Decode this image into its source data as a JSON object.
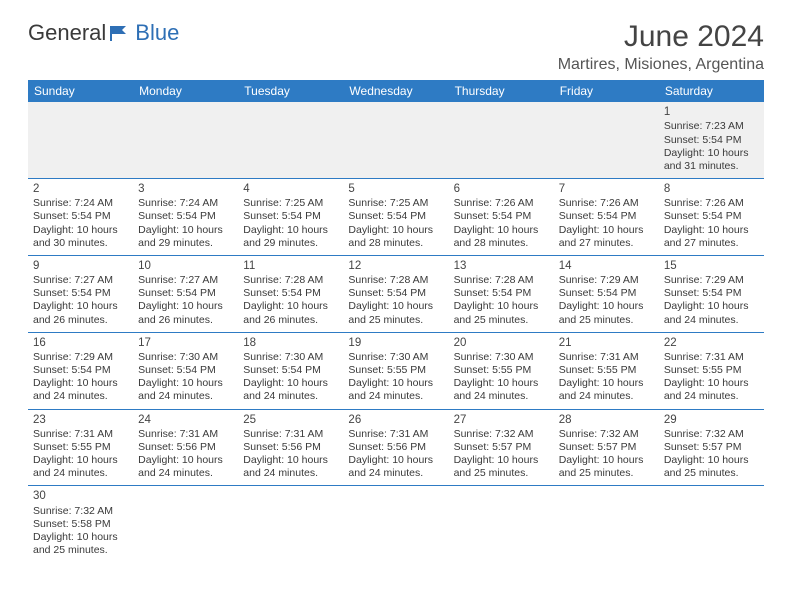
{
  "brand": {
    "part1": "General",
    "part2": "Blue"
  },
  "title": "June 2024",
  "location": "Martires, Misiones, Argentina",
  "colors": {
    "header_bg": "#2e7bc4",
    "header_fg": "#ffffff",
    "row_border": "#2e7bc4",
    "first_row_bg": "#f0f0f0",
    "text": "#3a3a3a",
    "brand_blue": "#2e6fb5"
  },
  "typography": {
    "title_fontsize": 30,
    "location_fontsize": 16,
    "header_fontsize": 12,
    "cell_fontsize": 10.5
  },
  "days": [
    "Sunday",
    "Monday",
    "Tuesday",
    "Wednesday",
    "Thursday",
    "Friday",
    "Saturday"
  ],
  "weeks": [
    [
      null,
      null,
      null,
      null,
      null,
      null,
      {
        "n": "1",
        "sr": "Sunrise: 7:23 AM",
        "ss": "Sunset: 5:54 PM",
        "dl": "Daylight: 10 hours and 31 minutes."
      }
    ],
    [
      {
        "n": "2",
        "sr": "Sunrise: 7:24 AM",
        "ss": "Sunset: 5:54 PM",
        "dl": "Daylight: 10 hours and 30 minutes."
      },
      {
        "n": "3",
        "sr": "Sunrise: 7:24 AM",
        "ss": "Sunset: 5:54 PM",
        "dl": "Daylight: 10 hours and 29 minutes."
      },
      {
        "n": "4",
        "sr": "Sunrise: 7:25 AM",
        "ss": "Sunset: 5:54 PM",
        "dl": "Daylight: 10 hours and 29 minutes."
      },
      {
        "n": "5",
        "sr": "Sunrise: 7:25 AM",
        "ss": "Sunset: 5:54 PM",
        "dl": "Daylight: 10 hours and 28 minutes."
      },
      {
        "n": "6",
        "sr": "Sunrise: 7:26 AM",
        "ss": "Sunset: 5:54 PM",
        "dl": "Daylight: 10 hours and 28 minutes."
      },
      {
        "n": "7",
        "sr": "Sunrise: 7:26 AM",
        "ss": "Sunset: 5:54 PM",
        "dl": "Daylight: 10 hours and 27 minutes."
      },
      {
        "n": "8",
        "sr": "Sunrise: 7:26 AM",
        "ss": "Sunset: 5:54 PM",
        "dl": "Daylight: 10 hours and 27 minutes."
      }
    ],
    [
      {
        "n": "9",
        "sr": "Sunrise: 7:27 AM",
        "ss": "Sunset: 5:54 PM",
        "dl": "Daylight: 10 hours and 26 minutes."
      },
      {
        "n": "10",
        "sr": "Sunrise: 7:27 AM",
        "ss": "Sunset: 5:54 PM",
        "dl": "Daylight: 10 hours and 26 minutes."
      },
      {
        "n": "11",
        "sr": "Sunrise: 7:28 AM",
        "ss": "Sunset: 5:54 PM",
        "dl": "Daylight: 10 hours and 26 minutes."
      },
      {
        "n": "12",
        "sr": "Sunrise: 7:28 AM",
        "ss": "Sunset: 5:54 PM",
        "dl": "Daylight: 10 hours and 25 minutes."
      },
      {
        "n": "13",
        "sr": "Sunrise: 7:28 AM",
        "ss": "Sunset: 5:54 PM",
        "dl": "Daylight: 10 hours and 25 minutes."
      },
      {
        "n": "14",
        "sr": "Sunrise: 7:29 AM",
        "ss": "Sunset: 5:54 PM",
        "dl": "Daylight: 10 hours and 25 minutes."
      },
      {
        "n": "15",
        "sr": "Sunrise: 7:29 AM",
        "ss": "Sunset: 5:54 PM",
        "dl": "Daylight: 10 hours and 24 minutes."
      }
    ],
    [
      {
        "n": "16",
        "sr": "Sunrise: 7:29 AM",
        "ss": "Sunset: 5:54 PM",
        "dl": "Daylight: 10 hours and 24 minutes."
      },
      {
        "n": "17",
        "sr": "Sunrise: 7:30 AM",
        "ss": "Sunset: 5:54 PM",
        "dl": "Daylight: 10 hours and 24 minutes."
      },
      {
        "n": "18",
        "sr": "Sunrise: 7:30 AM",
        "ss": "Sunset: 5:54 PM",
        "dl": "Daylight: 10 hours and 24 minutes."
      },
      {
        "n": "19",
        "sr": "Sunrise: 7:30 AM",
        "ss": "Sunset: 5:55 PM",
        "dl": "Daylight: 10 hours and 24 minutes."
      },
      {
        "n": "20",
        "sr": "Sunrise: 7:30 AM",
        "ss": "Sunset: 5:55 PM",
        "dl": "Daylight: 10 hours and 24 minutes."
      },
      {
        "n": "21",
        "sr": "Sunrise: 7:31 AM",
        "ss": "Sunset: 5:55 PM",
        "dl": "Daylight: 10 hours and 24 minutes."
      },
      {
        "n": "22",
        "sr": "Sunrise: 7:31 AM",
        "ss": "Sunset: 5:55 PM",
        "dl": "Daylight: 10 hours and 24 minutes."
      }
    ],
    [
      {
        "n": "23",
        "sr": "Sunrise: 7:31 AM",
        "ss": "Sunset: 5:55 PM",
        "dl": "Daylight: 10 hours and 24 minutes."
      },
      {
        "n": "24",
        "sr": "Sunrise: 7:31 AM",
        "ss": "Sunset: 5:56 PM",
        "dl": "Daylight: 10 hours and 24 minutes."
      },
      {
        "n": "25",
        "sr": "Sunrise: 7:31 AM",
        "ss": "Sunset: 5:56 PM",
        "dl": "Daylight: 10 hours and 24 minutes."
      },
      {
        "n": "26",
        "sr": "Sunrise: 7:31 AM",
        "ss": "Sunset: 5:56 PM",
        "dl": "Daylight: 10 hours and 24 minutes."
      },
      {
        "n": "27",
        "sr": "Sunrise: 7:32 AM",
        "ss": "Sunset: 5:57 PM",
        "dl": "Daylight: 10 hours and 25 minutes."
      },
      {
        "n": "28",
        "sr": "Sunrise: 7:32 AM",
        "ss": "Sunset: 5:57 PM",
        "dl": "Daylight: 10 hours and 25 minutes."
      },
      {
        "n": "29",
        "sr": "Sunrise: 7:32 AM",
        "ss": "Sunset: 5:57 PM",
        "dl": "Daylight: 10 hours and 25 minutes."
      }
    ],
    [
      {
        "n": "30",
        "sr": "Sunrise: 7:32 AM",
        "ss": "Sunset: 5:58 PM",
        "dl": "Daylight: 10 hours and 25 minutes."
      },
      null,
      null,
      null,
      null,
      null,
      null
    ]
  ]
}
